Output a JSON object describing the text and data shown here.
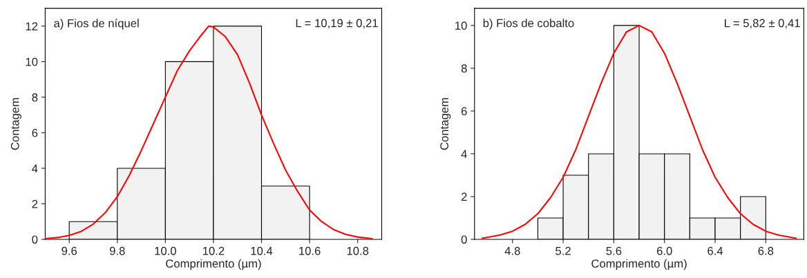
{
  "chart_data": [
    {
      "type": "histogram",
      "title": "a) Fios de níquel",
      "xlabel": "Comprimento (µm)",
      "ylabel": "Contagem",
      "annotations": [
        "L = 10,19 ± 0,21"
      ],
      "xlim": [
        9.5,
        10.9
      ],
      "xticks": [
        {
          "value": 9.6,
          "label": "9.6"
        },
        {
          "value": 9.8,
          "label": "9.8"
        },
        {
          "value": 10.0,
          "label": "10.0"
        },
        {
          "value": 10.2,
          "label": "10.2"
        },
        {
          "value": 10.4,
          "label": "10.4"
        },
        {
          "value": 10.6,
          "label": "10.6"
        },
        {
          "value": 10.8,
          "label": "10.8"
        }
      ],
      "ylim": [
        0,
        13
      ],
      "yticks": [
        0,
        2,
        4,
        6,
        8,
        10,
        12
      ],
      "grid": false,
      "series": [
        {
          "color": "#f2f2f2",
          "bins": [
            9.6,
            9.8,
            10.0,
            10.2,
            10.4,
            10.6
          ],
          "values": [
            1,
            4,
            10,
            12,
            3
          ]
        },
        {
          "type": "line",
          "color": "#ff0000",
          "x": [
            9.5,
            9.55,
            9.6,
            9.65,
            9.7,
            9.75,
            9.8,
            9.85,
            9.9,
            9.95,
            10.0,
            10.05,
            10.1,
            10.15,
            10.18,
            10.2,
            10.25,
            10.3,
            10.35,
            10.4,
            10.45,
            10.5,
            10.55,
            10.6,
            10.65,
            10.7,
            10.75,
            10.8,
            10.86
          ],
          "values": [
            0.04,
            0.1,
            0.22,
            0.45,
            0.86,
            1.5,
            2.4,
            3.6,
            5.0,
            6.5,
            8.0,
            9.5,
            10.6,
            11.5,
            12,
            11.95,
            11.4,
            10.4,
            8.8,
            7.0,
            5.4,
            3.9,
            2.7,
            1.65,
            1.0,
            0.55,
            0.28,
            0.13,
            0.04
          ]
        }
      ]
    },
    {
      "type": "histogram",
      "title": "b) Fios de cobalto",
      "xlabel": "Comprimento (µm)",
      "ylabel": "Contagem",
      "annotations": [
        "L = 5,82 ± 0,41"
      ],
      "xlim": [
        4.5,
        7.1
      ],
      "xticks": [
        {
          "value": 4.8,
          "label": "4.8"
        },
        {
          "value": 5.2,
          "label": "5.2"
        },
        {
          "value": 5.6,
          "label": "5.6"
        },
        {
          "value": 6.0,
          "label": "6.0"
        },
        {
          "value": 6.4,
          "label": "6.4"
        },
        {
          "value": 6.8,
          "label": "6.8"
        }
      ],
      "ylim": [
        0,
        10.8
      ],
      "yticks": [
        0,
        2,
        4,
        6,
        8,
        10
      ],
      "grid": false,
      "series": [
        {
          "color": "#f2f2f2",
          "bins": [
            5.0,
            5.2,
            5.4,
            5.6,
            5.8,
            6.0,
            6.2,
            6.4,
            6.6,
            6.8
          ],
          "values": [
            1,
            3,
            4,
            10,
            4,
            4,
            1,
            1,
            2
          ]
        },
        {
          "type": "line",
          "color": "#ff0000",
          "x": [
            4.56,
            4.7,
            4.8,
            4.9,
            5.0,
            5.1,
            5.2,
            5.3,
            5.4,
            5.5,
            5.6,
            5.7,
            5.8,
            5.9,
            6.0,
            6.1,
            6.2,
            6.3,
            6.4,
            6.5,
            6.6,
            6.7,
            6.8,
            6.9,
            7.04
          ],
          "values": [
            0.05,
            0.2,
            0.38,
            0.7,
            1.2,
            1.95,
            2.9,
            4.2,
            5.75,
            7.3,
            8.7,
            9.7,
            10,
            9.7,
            8.7,
            7.3,
            5.75,
            4.2,
            2.9,
            1.95,
            1.2,
            0.7,
            0.38,
            0.2,
            0.05
          ]
        }
      ]
    }
  ]
}
